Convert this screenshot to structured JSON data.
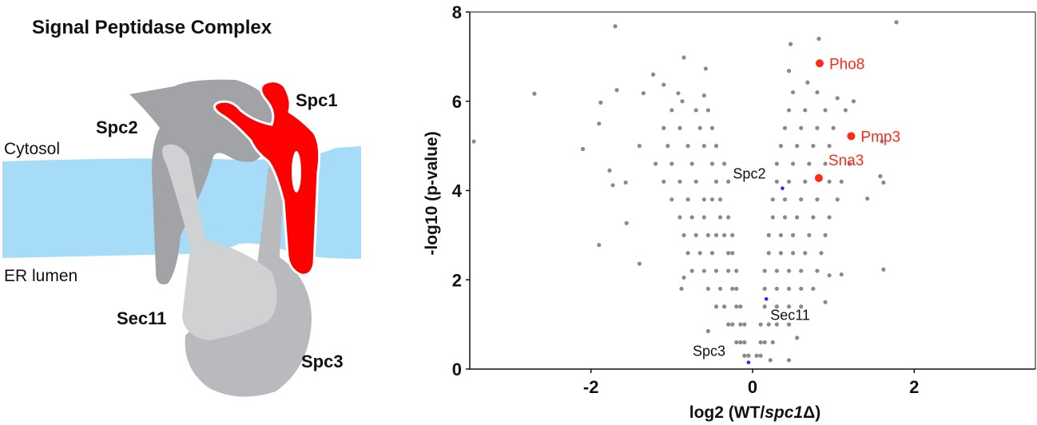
{
  "diagram": {
    "title": "Signal Peptidase Complex",
    "labels": {
      "spc1": "Spc1",
      "spc2": "Spc2",
      "sec11": "Sec11",
      "spc3": "Spc3",
      "cytosol": "Cytosol",
      "er_lumen": "ER lumen"
    },
    "colors": {
      "membrane": "#a6dcf8",
      "spc1": "#ff0000",
      "spc2": "#a2a3a6",
      "sec11": "#d0d1d3",
      "spc3": "#b9babd"
    }
  },
  "chart_data": {
    "type": "scatter",
    "title": "",
    "xlabel_prefix": "log2 (WT/",
    "xlabel_italic": "spc1",
    "xlabel_suffix": "Δ)",
    "ylabel": "-log10 (p-value)",
    "xlim": [
      -3.5,
      3.5
    ],
    "ylim": [
      0,
      8
    ],
    "xticks": [
      -2,
      0,
      2
    ],
    "yticks": [
      0,
      2,
      4,
      6,
      8
    ],
    "grid": false,
    "colors": {
      "points": "#8a8a8a",
      "highlight": "#ff2a1a",
      "subunit": "#1a2cff"
    },
    "highlighted": [
      {
        "name": "Pho8",
        "x": 0.83,
        "y": 6.85
      },
      {
        "name": "Pmp3",
        "x": 1.22,
        "y": 5.22
      },
      {
        "name": "Sna3",
        "x": 0.82,
        "y": 4.28
      }
    ],
    "subunits": [
      {
        "name": "Spc2",
        "x": 0.37,
        "y": 4.05
      },
      {
        "name": "Sec11",
        "x": 0.17,
        "y": 1.57
      },
      {
        "name": "Spc3",
        "x": -0.05,
        "y": 0.15
      }
    ],
    "points": [
      [
        -3.45,
        5.1
      ],
      [
        -2.7,
        6.17
      ],
      [
        -2.1,
        4.93
      ],
      [
        -1.88,
        5.97
      ],
      [
        -1.9,
        5.5
      ],
      [
        -1.9,
        2.78
      ],
      [
        -1.77,
        4.45
      ],
      [
        -1.73,
        4.12
      ],
      [
        -1.7,
        7.68
      ],
      [
        -1.68,
        6.25
      ],
      [
        -1.57,
        4.18
      ],
      [
        -1.56,
        3.27
      ],
      [
        -1.4,
        5.0
      ],
      [
        -1.4,
        2.36
      ],
      [
        -1.35,
        6.18
      ],
      [
        -1.23,
        6.6
      ],
      [
        -1.1,
        6.37
      ],
      [
        -0.85,
        6.98
      ],
      [
        -0.58,
        6.73
      ],
      [
        -0.92,
        6.18
      ],
      [
        -0.87,
        6.0
      ],
      [
        -0.6,
        6.13
      ],
      [
        1.78,
        7.77
      ],
      [
        0.82,
        7.4
      ],
      [
        0.47,
        7.28
      ],
      [
        0.45,
        6.68
      ],
      [
        0.68,
        6.42
      ],
      [
        1.05,
        6.07
      ],
      [
        1.25,
        6.0
      ],
      [
        1.6,
        5.1
      ],
      [
        1.58,
        4.32
      ],
      [
        1.62,
        4.18
      ],
      [
        1.42,
        3.82
      ],
      [
        1.62,
        2.23
      ],
      [
        1.1,
        2.12
      ],
      [
        0.9,
        1.5
      ],
      [
        0.95,
        2.1
      ],
      [
        -0.85,
        2.05
      ],
      [
        -0.88,
        1.8
      ],
      [
        -0.55,
        0.85
      ],
      [
        0.45,
        0.2
      ],
      [
        0.22,
        0.2
      ],
      [
        0.55,
        0.7
      ],
      [
        -0.05,
        0.3
      ],
      [
        -0.1,
        0.3
      ],
      [
        -0.1,
        0.6
      ],
      [
        -0.15,
        0.6
      ],
      [
        -0.2,
        0.6
      ],
      [
        -0.15,
        1.0
      ],
      [
        -0.25,
        1.0
      ],
      [
        -0.3,
        1.0
      ],
      [
        -0.1,
        1.0
      ],
      [
        -0.2,
        1.4
      ],
      [
        -0.35,
        1.4
      ],
      [
        -0.45,
        1.4
      ],
      [
        -0.15,
        1.4
      ],
      [
        -0.25,
        1.8
      ],
      [
        -0.4,
        1.8
      ],
      [
        -0.55,
        1.8
      ],
      [
        -0.2,
        1.8
      ],
      [
        -0.3,
        2.2
      ],
      [
        -0.45,
        2.2
      ],
      [
        -0.6,
        2.2
      ],
      [
        -0.75,
        2.2
      ],
      [
        -0.2,
        2.2
      ],
      [
        -0.3,
        2.6
      ],
      [
        -0.5,
        2.6
      ],
      [
        -0.65,
        2.6
      ],
      [
        -0.8,
        2.6
      ],
      [
        -0.25,
        2.6
      ],
      [
        -0.35,
        3.0
      ],
      [
        -0.55,
        3.0
      ],
      [
        -0.7,
        3.0
      ],
      [
        -0.85,
        3.0
      ],
      [
        -0.45,
        3.0
      ],
      [
        -0.25,
        3.0
      ],
      [
        -0.4,
        3.4
      ],
      [
        -0.6,
        3.4
      ],
      [
        -0.75,
        3.4
      ],
      [
        -0.9,
        3.4
      ],
      [
        -0.3,
        3.4
      ],
      [
        -0.4,
        3.8
      ],
      [
        -0.6,
        3.8
      ],
      [
        -0.8,
        3.8
      ],
      [
        -1.0,
        3.8
      ],
      [
        -0.5,
        3.8
      ],
      [
        -0.45,
        4.2
      ],
      [
        -0.7,
        4.2
      ],
      [
        -0.9,
        4.2
      ],
      [
        -1.1,
        4.2
      ],
      [
        -0.3,
        4.2
      ],
      [
        -0.5,
        4.6
      ],
      [
        -0.75,
        4.6
      ],
      [
        -1.0,
        4.6
      ],
      [
        -1.2,
        4.6
      ],
      [
        -0.35,
        4.6
      ],
      [
        -0.6,
        5.0
      ],
      [
        -0.8,
        5.0
      ],
      [
        -1.05,
        5.0
      ],
      [
        -0.45,
        5.0
      ],
      [
        -0.65,
        5.4
      ],
      [
        -0.9,
        5.4
      ],
      [
        -1.1,
        5.4
      ],
      [
        -0.5,
        5.4
      ],
      [
        -0.7,
        5.8
      ],
      [
        -1.0,
        5.8
      ],
      [
        -0.55,
        5.8
      ],
      [
        0.05,
        0.3
      ],
      [
        0.1,
        0.3
      ],
      [
        0.1,
        0.6
      ],
      [
        0.15,
        0.6
      ],
      [
        0.25,
        0.6
      ],
      [
        0.1,
        1.0
      ],
      [
        0.2,
        1.0
      ],
      [
        0.3,
        1.0
      ],
      [
        0.45,
        1.0
      ],
      [
        0.15,
        1.4
      ],
      [
        0.3,
        1.4
      ],
      [
        0.45,
        1.4
      ],
      [
        0.6,
        1.4
      ],
      [
        0.15,
        1.8
      ],
      [
        0.3,
        1.8
      ],
      [
        0.45,
        1.8
      ],
      [
        0.6,
        1.8
      ],
      [
        0.75,
        1.8
      ],
      [
        0.15,
        2.2
      ],
      [
        0.3,
        2.2
      ],
      [
        0.45,
        2.2
      ],
      [
        0.6,
        2.2
      ],
      [
        0.8,
        2.2
      ],
      [
        0.2,
        2.6
      ],
      [
        0.35,
        2.6
      ],
      [
        0.5,
        2.6
      ],
      [
        0.65,
        2.6
      ],
      [
        0.85,
        2.6
      ],
      [
        0.2,
        3.0
      ],
      [
        0.35,
        3.0
      ],
      [
        0.5,
        3.0
      ],
      [
        0.7,
        3.0
      ],
      [
        0.9,
        3.0
      ],
      [
        0.25,
        3.4
      ],
      [
        0.4,
        3.4
      ],
      [
        0.55,
        3.4
      ],
      [
        0.75,
        3.4
      ],
      [
        0.95,
        3.4
      ],
      [
        0.25,
        3.8
      ],
      [
        0.4,
        3.8
      ],
      [
        0.6,
        3.8
      ],
      [
        0.8,
        3.8
      ],
      [
        1.05,
        3.8
      ],
      [
        0.3,
        4.2
      ],
      [
        0.45,
        4.2
      ],
      [
        0.65,
        4.2
      ],
      [
        0.95,
        4.2
      ],
      [
        1.1,
        4.2
      ],
      [
        0.3,
        4.6
      ],
      [
        0.5,
        4.6
      ],
      [
        0.7,
        4.6
      ],
      [
        0.9,
        4.6
      ],
      [
        1.2,
        4.6
      ],
      [
        0.35,
        5.0
      ],
      [
        0.55,
        5.0
      ],
      [
        0.75,
        5.0
      ],
      [
        0.95,
        5.0
      ],
      [
        0.4,
        5.4
      ],
      [
        0.6,
        5.4
      ],
      [
        0.8,
        5.4
      ],
      [
        1.0,
        5.4
      ],
      [
        0.45,
        5.8
      ],
      [
        0.65,
        5.8
      ],
      [
        0.9,
        5.8
      ],
      [
        1.15,
        5.8
      ],
      [
        0.5,
        6.2
      ],
      [
        0.8,
        6.2
      ]
    ]
  }
}
